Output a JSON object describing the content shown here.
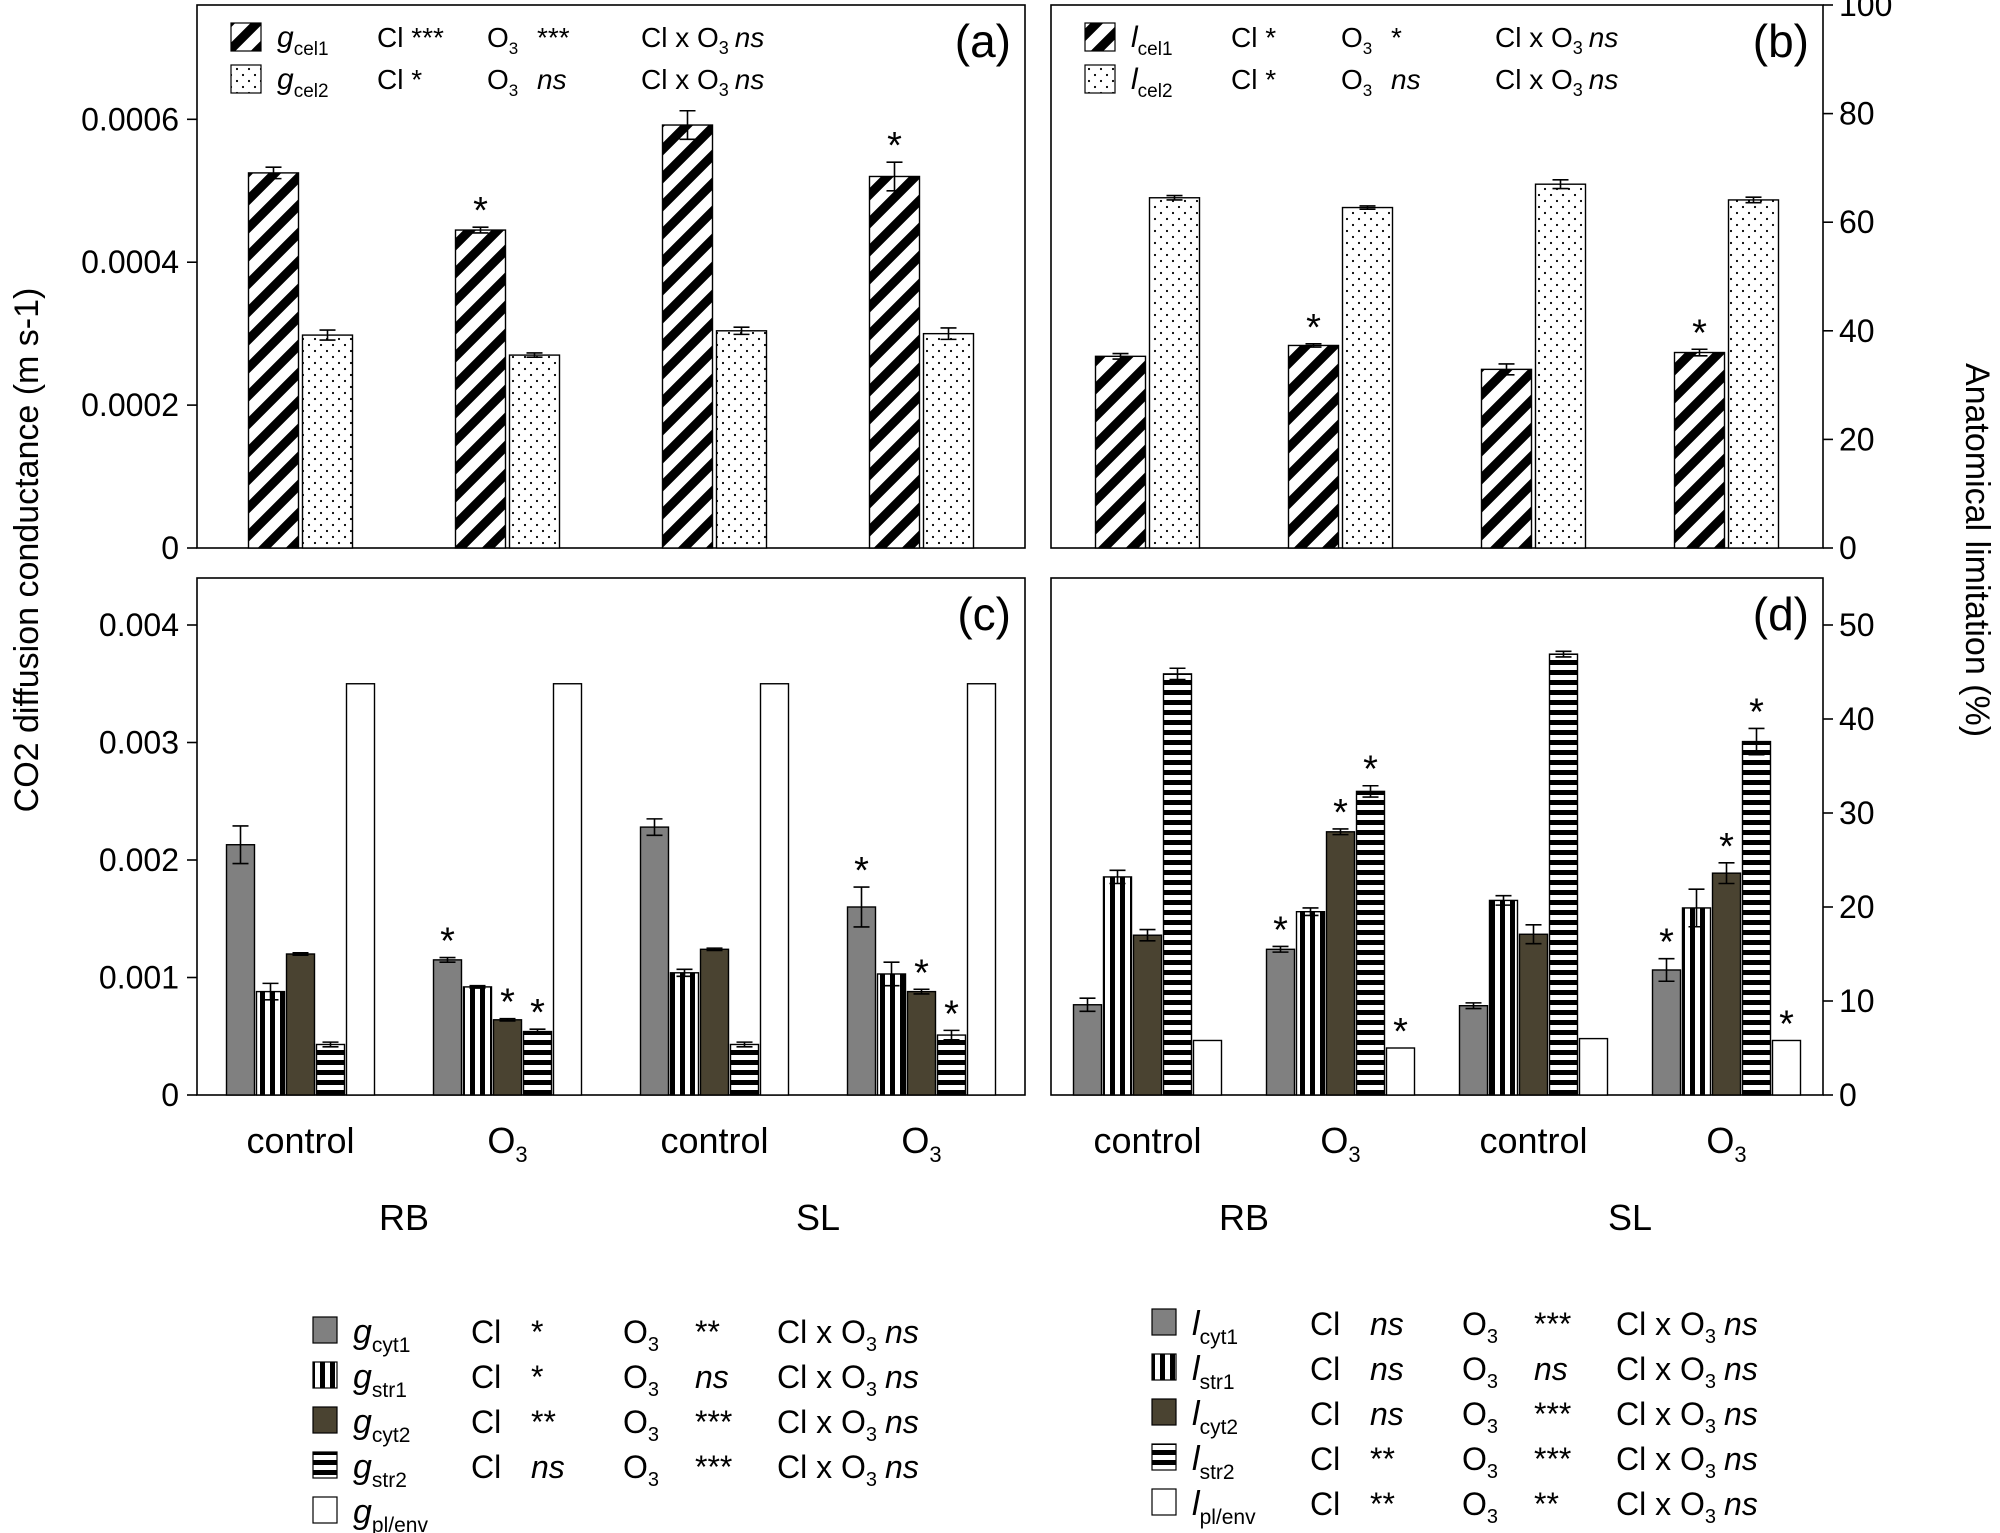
{
  "figure": {
    "y_label_left": "CO2 diffusion conductance (m s-1)",
    "y_label_right": "Anatomical limitation (%)",
    "x_categories": [
      "control",
      "O3",
      "control",
      "O3"
    ],
    "x_category_parts": [
      {
        "main": "control",
        "sub": ""
      },
      {
        "main": "O",
        "sub": "3"
      },
      {
        "main": "control",
        "sub": ""
      },
      {
        "main": "O",
        "sub": "3"
      }
    ],
    "groups": [
      "RB",
      "SL"
    ],
    "colors": {
      "gray": "#808080",
      "olive": "#4a4331",
      "white": "#ffffff",
      "black": "#000000"
    }
  },
  "chart_data": [
    {
      "panel": "(a)",
      "type": "bar",
      "axis": "left",
      "categories": [
        "control",
        "O3",
        "control",
        "O3"
      ],
      "ylim": [
        0,
        0.00076
      ],
      "yticks": [
        "0",
        "0.0002",
        "0.0004",
        "0.0006"
      ],
      "ytick_values": [
        0,
        0.0002,
        0.0004,
        0.0006
      ],
      "series": [
        {
          "name": "gcel1",
          "pattern": "diagonal",
          "values": [
            0.000525,
            0.000445,
            0.000592,
            0.00052
          ],
          "errors": [
            8e-06,
            4e-06,
            2e-05,
            2e-05
          ],
          "significant": [
            false,
            true,
            false,
            true
          ]
        },
        {
          "name": "gcel2",
          "pattern": "dots",
          "values": [
            0.000298,
            0.00027,
            0.000304,
            0.0003
          ],
          "errors": [
            7e-06,
            3e-06,
            5e-06,
            8e-06
          ],
          "significant": [
            false,
            false,
            false,
            false
          ]
        }
      ],
      "legend": [
        {
          "sym": "g",
          "sub": "cel1",
          "cl": "Cl ***",
          "o3_stars": "***",
          "o3_italic": false,
          "inter": "ns",
          "pattern": "diagonal"
        },
        {
          "sym": "g",
          "sub": "cel2",
          "cl": "Cl *",
          "o3_stars": "ns",
          "o3_italic": true,
          "inter": "ns",
          "pattern": "dots"
        }
      ]
    },
    {
      "panel": "(b)",
      "type": "bar",
      "axis": "right",
      "categories": [
        "control",
        "O3",
        "control",
        "O3"
      ],
      "ylim": [
        0,
        100
      ],
      "yticks": [
        "0",
        "20",
        "40",
        "60",
        "80",
        "100"
      ],
      "ytick_values": [
        0,
        20,
        40,
        60,
        80,
        100
      ],
      "series": [
        {
          "name": "lcel1",
          "pattern": "diagonal",
          "values": [
            35.3,
            37.3,
            32.9,
            36
          ],
          "errors": [
            0.5,
            0.3,
            1,
            0.6
          ],
          "significant": [
            false,
            true,
            false,
            true
          ]
        },
        {
          "name": "lcel2",
          "pattern": "dots",
          "values": [
            64.5,
            62.7,
            67,
            64.1
          ],
          "errors": [
            0.4,
            0.3,
            0.8,
            0.5
          ],
          "significant": [
            false,
            false,
            false,
            false
          ]
        }
      ],
      "legend": [
        {
          "sym": "l",
          "sub": "cel1",
          "cl": "Cl *",
          "o3_stars": "*",
          "o3_italic": false,
          "inter": "ns",
          "pattern": "diagonal"
        },
        {
          "sym": "l",
          "sub": "cel2",
          "cl": "Cl *",
          "o3_stars": "ns",
          "o3_italic": true,
          "inter": "ns",
          "pattern": "dots"
        }
      ]
    },
    {
      "panel": "(c)",
      "type": "bar",
      "axis": "left",
      "categories": [
        "control",
        "O3",
        "control",
        "O3"
      ],
      "ylim": [
        0,
        0.0044
      ],
      "yticks": [
        "0",
        "0.001",
        "0.002",
        "0.003",
        "0.004"
      ],
      "ytick_values": [
        0,
        0.001,
        0.002,
        0.003,
        0.004
      ],
      "series": [
        {
          "name": "gcyt1",
          "pattern": "gray",
          "values": [
            0.00213,
            0.00115,
            0.00228,
            0.0016
          ],
          "errors": [
            0.00016,
            2e-05,
            7e-05,
            0.00017
          ],
          "significant": [
            false,
            true,
            false,
            true
          ]
        },
        {
          "name": "gstr1",
          "pattern": "vstripes",
          "values": [
            0.00088,
            0.00092,
            0.00104,
            0.00103
          ],
          "errors": [
            7e-05,
            1e-05,
            3e-05,
            0.0001
          ],
          "significant": [
            false,
            false,
            false,
            false
          ]
        },
        {
          "name": "gcyt2",
          "pattern": "olive",
          "values": [
            0.0012,
            0.00064,
            0.00124,
            0.00088
          ],
          "errors": [
            1e-05,
            1e-05,
            1e-05,
            2e-05
          ],
          "significant": [
            false,
            true,
            false,
            true
          ]
        },
        {
          "name": "gstr2",
          "pattern": "hstripes",
          "values": [
            0.00043,
            0.00054,
            0.00043,
            0.00051
          ],
          "errors": [
            2e-05,
            2e-05,
            2e-05,
            4e-05
          ],
          "significant": [
            false,
            true,
            false,
            true
          ]
        },
        {
          "name": "gpl/env",
          "pattern": "white",
          "values": [
            0.0035,
            0.0035,
            0.0035,
            0.0035
          ],
          "errors": [
            0,
            0,
            0,
            0
          ],
          "significant": [
            false,
            false,
            false,
            false
          ]
        }
      ]
    },
    {
      "panel": "(d)",
      "type": "bar",
      "axis": "right",
      "categories": [
        "control",
        "O3",
        "control",
        "O3"
      ],
      "ylim": [
        0,
        55
      ],
      "yticks": [
        "0",
        "10",
        "20",
        "30",
        "40",
        "50"
      ],
      "ytick_values": [
        0,
        10,
        20,
        30,
        40,
        50
      ],
      "series": [
        {
          "name": "lcyt1",
          "pattern": "gray",
          "values": [
            9.6,
            15.5,
            9.5,
            13.3
          ],
          "errors": [
            0.7,
            0.3,
            0.3,
            1.2
          ],
          "significant": [
            false,
            true,
            false,
            true
          ]
        },
        {
          "name": "lstr1",
          "pattern": "vstripes",
          "values": [
            23.2,
            19.5,
            20.7,
            19.9
          ],
          "errors": [
            0.7,
            0.4,
            0.5,
            2
          ],
          "significant": [
            false,
            false,
            false,
            false
          ]
        },
        {
          "name": "lcyt2",
          "pattern": "olive",
          "values": [
            17,
            28,
            17.1,
            23.6
          ],
          "errors": [
            0.6,
            0.3,
            1,
            1.1
          ],
          "significant": [
            false,
            true,
            false,
            true
          ]
        },
        {
          "name": "lstr2",
          "pattern": "hstripes",
          "values": [
            44.8,
            32.3,
            46.9,
            37.6
          ],
          "errors": [
            0.6,
            0.6,
            0.3,
            1.4
          ],
          "significant": [
            false,
            true,
            false,
            true
          ]
        },
        {
          "name": "lpl/env",
          "pattern": "white",
          "values": [
            5.8,
            5,
            6,
            5.8
          ],
          "errors": [
            0,
            0,
            0,
            0
          ],
          "significant": [
            false,
            true,
            false,
            true
          ]
        }
      ]
    }
  ],
  "legend_g": [
    {
      "sym": "g",
      "sub": "cyt1",
      "cl": "*",
      "cl_italic": false,
      "o3": "**",
      "o3_italic": false,
      "inter": "ns",
      "pattern": "gray"
    },
    {
      "sym": "g",
      "sub": "str1",
      "cl": "*",
      "cl_italic": false,
      "o3": "ns",
      "o3_italic": true,
      "inter": "ns",
      "pattern": "vstripes"
    },
    {
      "sym": "g",
      "sub": "cyt2",
      "cl": "**",
      "cl_italic": false,
      "o3": "***",
      "o3_italic": false,
      "inter": "ns",
      "pattern": "dark"
    },
    {
      "sym": "g",
      "sub": "str2",
      "cl": "ns",
      "cl_italic": true,
      "o3": "***",
      "o3_italic": false,
      "inter": "ns",
      "pattern": "hstripes"
    },
    {
      "sym": "g",
      "sub": "pl/env",
      "cl": "",
      "cl_italic": false,
      "o3": "",
      "o3_italic": false,
      "inter": "",
      "pattern": "white"
    }
  ],
  "legend_l": [
    {
      "sym": "l",
      "sub": "cyt1",
      "cl": "ns",
      "cl_italic": true,
      "o3": "***",
      "o3_italic": false,
      "inter": "ns",
      "pattern": "gray"
    },
    {
      "sym": "l",
      "sub": "str1",
      "cl": "ns",
      "cl_italic": true,
      "o3": "ns",
      "o3_italic": true,
      "inter": "ns",
      "pattern": "vstripes"
    },
    {
      "sym": "l",
      "sub": "cyt2",
      "cl": "ns",
      "cl_italic": true,
      "o3": "***",
      "o3_italic": false,
      "inter": "ns",
      "pattern": "dark"
    },
    {
      "sym": "l",
      "sub": "str2",
      "cl": "**",
      "cl_italic": false,
      "o3": "***",
      "o3_italic": false,
      "inter": "ns",
      "pattern": "hstripes"
    },
    {
      "sym": "l",
      "sub": "pl/env",
      "cl": "**",
      "cl_italic": false,
      "o3": "**",
      "o3_italic": false,
      "inter": "ns",
      "pattern": "white"
    }
  ],
  "legend_words": {
    "cl": "Cl",
    "o3_main": "O",
    "o3_sub": "3",
    "inter_prefix": "Cl x O"
  }
}
